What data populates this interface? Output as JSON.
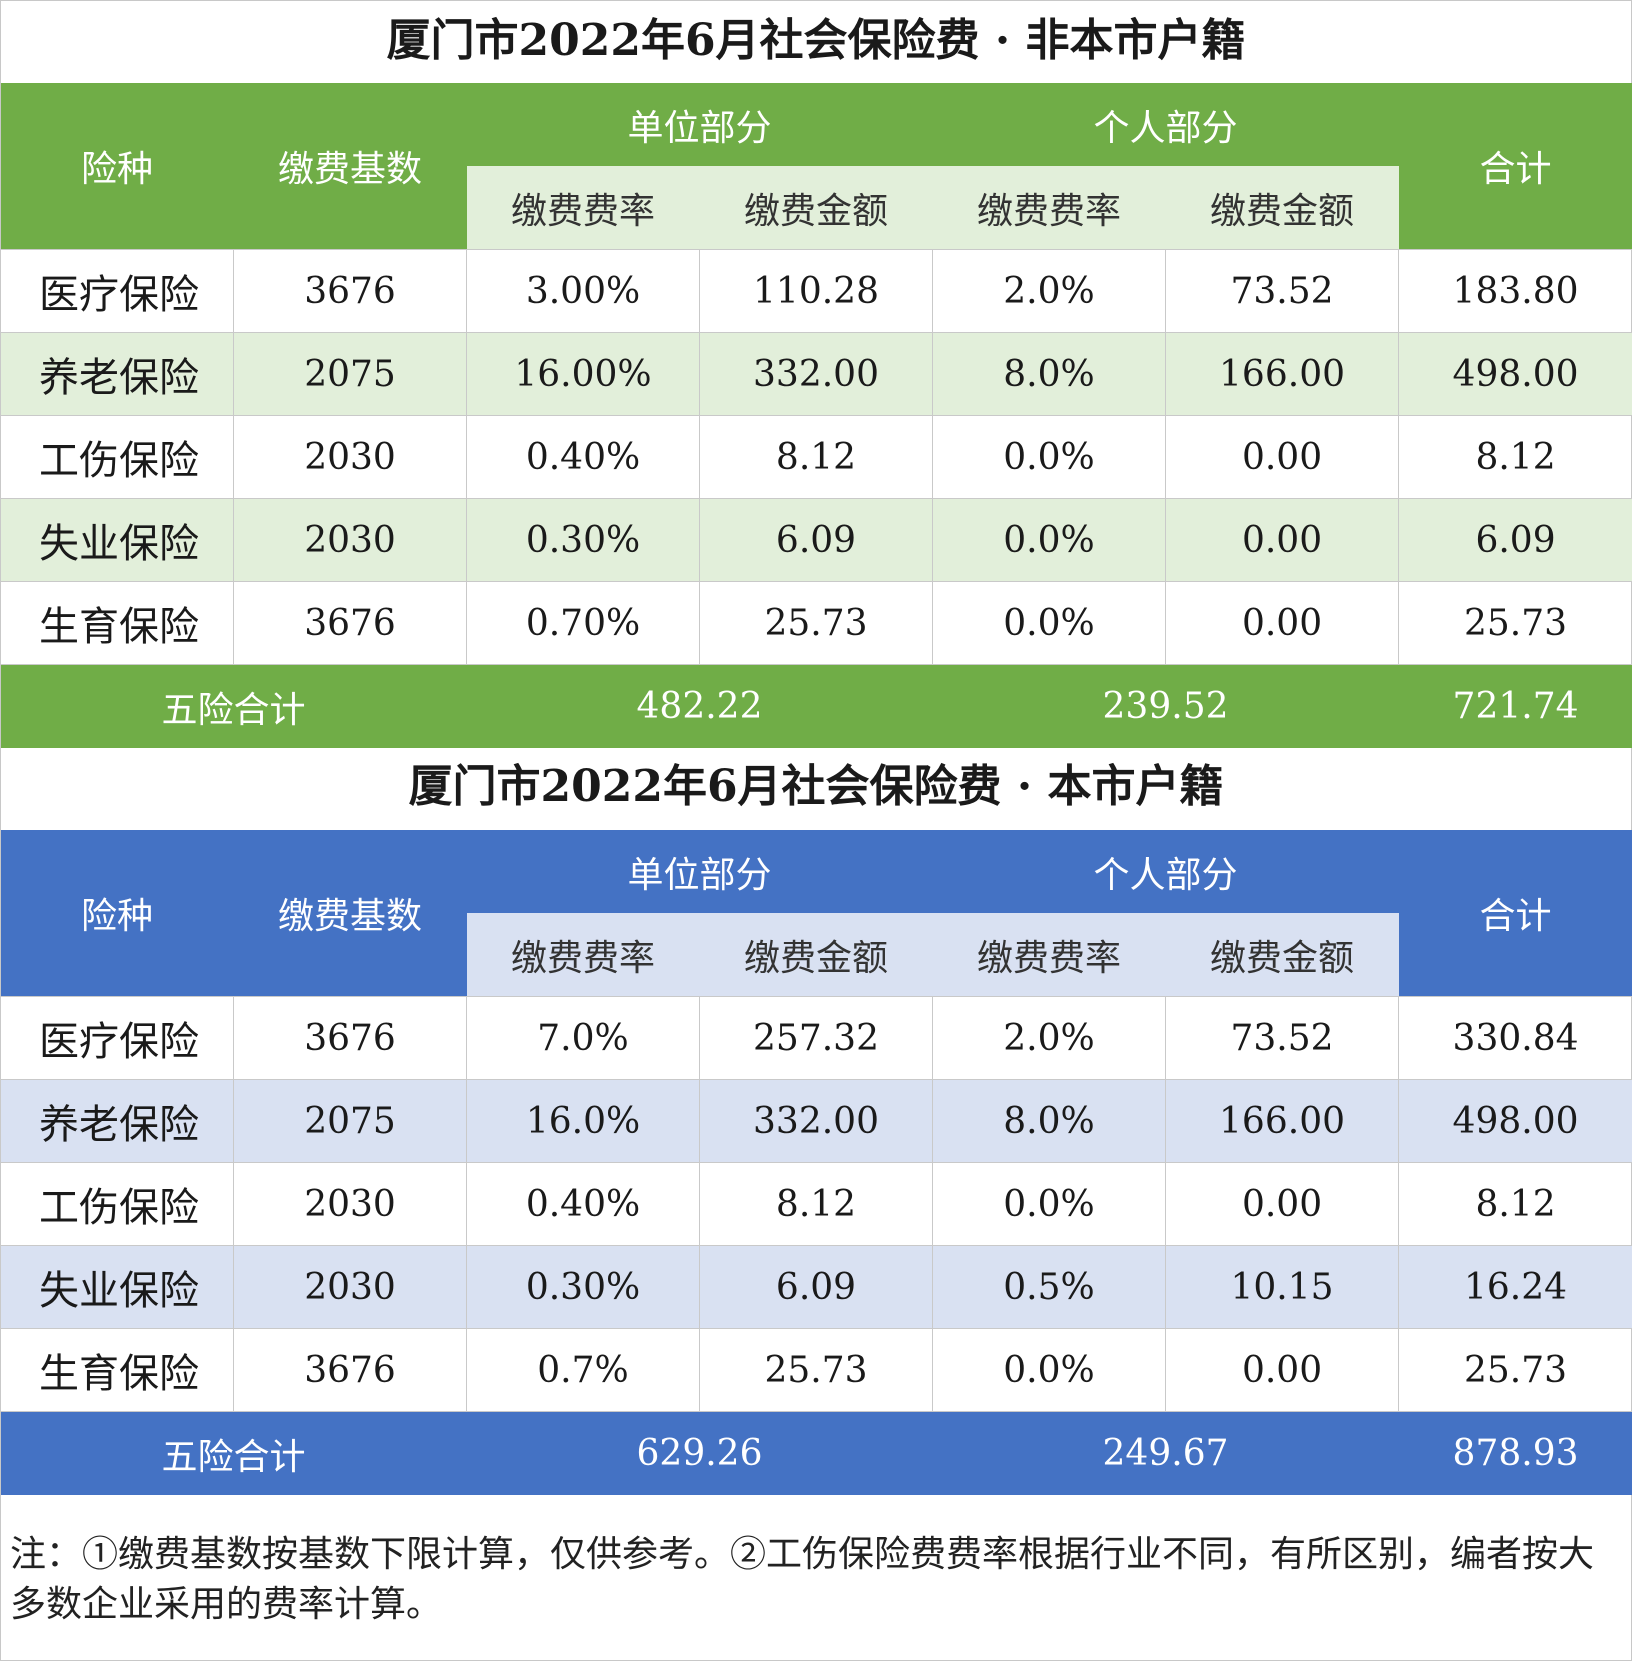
{
  "tables": [
    {
      "title": "厦门市2022年6月社会保险费 · 非本市户籍",
      "header": {
        "type": "险种",
        "base": "缴费基数",
        "unit_part": "单位部分",
        "personal_part": "个人部分",
        "rate": "缴费费率",
        "amount": "缴费金额",
        "total": "合计"
      },
      "rows": [
        {
          "name": "医疗保险",
          "base": "3676",
          "unit_rate": "3.00%",
          "unit_amount": "110.28",
          "personal_rate": "2.0%",
          "personal_amount": "73.52",
          "total": "183.80"
        },
        {
          "name": "养老保险",
          "base": "2075",
          "unit_rate": "16.00%",
          "unit_amount": "332.00",
          "personal_rate": "8.0%",
          "personal_amount": "166.00",
          "total": "498.00"
        },
        {
          "name": "工伤保险",
          "base": "2030",
          "unit_rate": "0.40%",
          "unit_amount": "8.12",
          "personal_rate": "0.0%",
          "personal_amount": "0.00",
          "total": "8.12"
        },
        {
          "name": "失业保险",
          "base": "2030",
          "unit_rate": "0.30%",
          "unit_amount": "6.09",
          "personal_rate": "0.0%",
          "personal_amount": "0.00",
          "total": "6.09"
        },
        {
          "name": "生育保险",
          "base": "3676",
          "unit_rate": "0.70%",
          "unit_amount": "25.73",
          "personal_rate": "0.0%",
          "personal_amount": "0.00",
          "total": "25.73"
        }
      ],
      "summary": {
        "label": "五险合计",
        "unit_total": "482.22",
        "personal_total": "239.52",
        "grand_total": "721.74"
      }
    },
    {
      "title": "厦门市2022年6月社会保险费 · 本市户籍",
      "header": {
        "type": "险种",
        "base": "缴费基数",
        "unit_part": "单位部分",
        "personal_part": "个人部分",
        "rate": "缴费费率",
        "amount": "缴费金额",
        "total": "合计"
      },
      "rows": [
        {
          "name": "医疗保险",
          "base": "3676",
          "unit_rate": "7.0%",
          "unit_amount": "257.32",
          "personal_rate": "2.0%",
          "personal_amount": "73.52",
          "total": "330.84"
        },
        {
          "name": "养老保险",
          "base": "2075",
          "unit_rate": "16.0%",
          "unit_amount": "332.00",
          "personal_rate": "8.0%",
          "personal_amount": "166.00",
          "total": "498.00"
        },
        {
          "name": "工伤保险",
          "base": "2030",
          "unit_rate": "0.40%",
          "unit_amount": "8.12",
          "personal_rate": "0.0%",
          "personal_amount": "0.00",
          "total": "8.12"
        },
        {
          "name": "失业保险",
          "base": "2030",
          "unit_rate": "0.30%",
          "unit_amount": "6.09",
          "personal_rate": "0.5%",
          "personal_amount": "10.15",
          "total": "16.24"
        },
        {
          "name": "生育保险",
          "base": "3676",
          "unit_rate": "0.7%",
          "unit_amount": "25.73",
          "personal_rate": "0.0%",
          "personal_amount": "0.00",
          "total": "25.73"
        }
      ],
      "summary": {
        "label": "五险合计",
        "unit_total": "629.26",
        "personal_total": "249.67",
        "grand_total": "878.93"
      }
    }
  ],
  "note": "注：①缴费基数按基数下限计算，仅供参考。②工伤保险费费率根据行业不同，有所区别，编者按大多数企业采用的费率计算。",
  "colors": {
    "green_header": "#70ad47",
    "green_light": "#e2efda",
    "blue_header": "#4472c4",
    "blue_light": "#d9e1f2"
  }
}
